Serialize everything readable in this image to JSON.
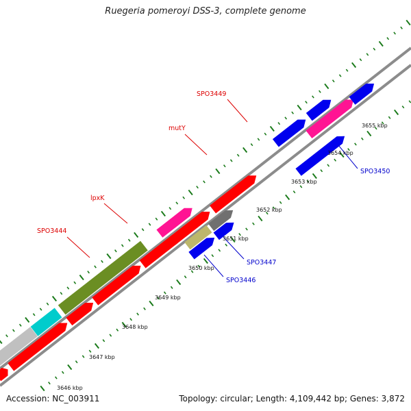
{
  "title": "Ruegeria pomeroyi DSS-3, complete genome",
  "footer": {
    "accession": "Accession: NC_003911",
    "summary": "Topology: circular; Length: 4,109,442 bp; Genes: 3,872"
  },
  "scale_labels": [
    "3646 kbp",
    "3647 kbp",
    "3648 kbp",
    "3649 kbp",
    "3650 kbp",
    "3651 kbp",
    "3652 kbp",
    "3653 kbp",
    "3654 kbp",
    "3655 kbp"
  ],
  "gene_labels": [
    "SPO3444",
    "lpxK",
    "mutY",
    "SPO3449",
    "SPO3446",
    "SPO3447",
    "SPO3450"
  ],
  "colors": {
    "red": "#ff0000",
    "blue": "#0000ee",
    "magenta": "#ff1493",
    "olive": "#6b8e23",
    "cyan": "#00cccc",
    "light-gray": "#c0c0c0",
    "dark-gray": "#707070",
    "khaki": "#bdb76b",
    "backbone": "#8c8c8c",
    "tick-green": "#1a7a1a",
    "label-red": "#dd0000",
    "label-blue": "#0000cc"
  }
}
